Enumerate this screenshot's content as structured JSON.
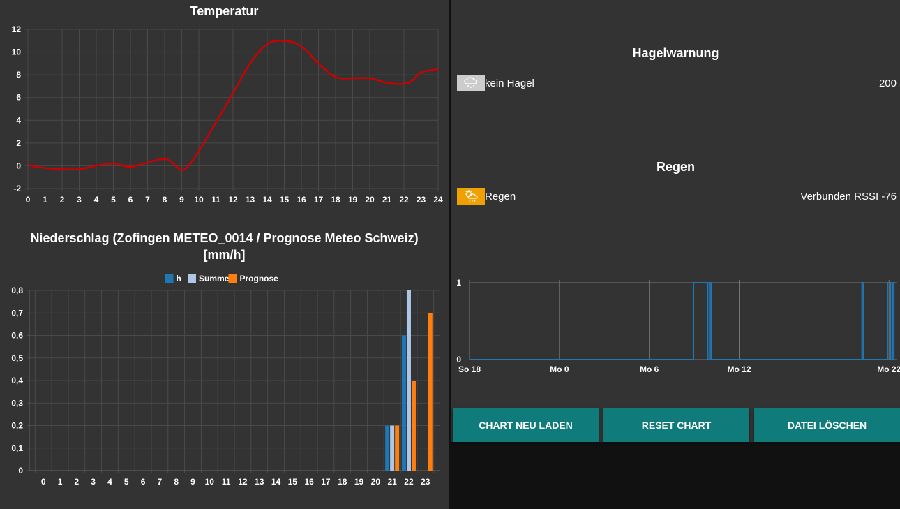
{
  "temperature_chart": {
    "title": "Temperatur",
    "line_color": "#cc0000",
    "chart_data": {
      "type": "line",
      "title": "Temperatur",
      "x": [
        0,
        0.5,
        1,
        2,
        3,
        4,
        5,
        6,
        7,
        8,
        8.5,
        9,
        9.5,
        10,
        11,
        12,
        13,
        14,
        15,
        16,
        17,
        18,
        19,
        20,
        21,
        22,
        22.5,
        23,
        24
      ],
      "y": [
        0.1,
        -0.1,
        -0.2,
        -0.3,
        -0.3,
        0,
        0.2,
        -0.1,
        0.3,
        0.6,
        0.2,
        -0.4,
        0.2,
        1.3,
        3.8,
        6.4,
        9,
        10.7,
        11,
        10.5,
        9,
        7.8,
        7.7,
        7.7,
        7.3,
        7.2,
        7.5,
        8.2,
        8.5
      ],
      "xticks": [
        "0",
        "1",
        "2",
        "3",
        "4",
        "5",
        "6",
        "7",
        "8",
        "9",
        "10",
        "11",
        "12",
        "13",
        "14",
        "15",
        "16",
        "17",
        "18",
        "19",
        "20",
        "21",
        "22",
        "23",
        "24"
      ],
      "yticks": [
        "-2",
        "0",
        "2",
        "4",
        "6",
        "8",
        "10",
        "12"
      ],
      "xlim": [
        0,
        24
      ],
      "ylim": [
        -2,
        12
      ],
      "grid": true
    }
  },
  "precip_chart": {
    "title": "Niederschlag (Zofingen METEO_0014 / Prognose Meteo Schweiz) [mm/h]",
    "title_line1": "Niederschlag (Zofingen METEO_0014 / Prognose Meteo Schweiz)",
    "title_line2": "[mm/h]",
    "legend": [
      {
        "label": "h",
        "color": "#1f77b4"
      },
      {
        "label": "Summe",
        "color": "#aec7e8"
      },
      {
        "label": "Prognose",
        "color": "#ff7f0e"
      }
    ],
    "chart_data": {
      "type": "bar",
      "categories": [
        "0",
        "1",
        "2",
        "3",
        "4",
        "5",
        "6",
        "7",
        "8",
        "9",
        "10",
        "11",
        "12",
        "13",
        "14",
        "15",
        "16",
        "17",
        "18",
        "19",
        "20",
        "21",
        "22",
        "23"
      ],
      "series": [
        {
          "name": "h",
          "color": "#1f77b4",
          "values": [
            0,
            0,
            0,
            0,
            0,
            0,
            0,
            0,
            0,
            0,
            0,
            0,
            0,
            0,
            0,
            0,
            0,
            0,
            0,
            0,
            0,
            0.2,
            0.6,
            0
          ]
        },
        {
          "name": "Summe",
          "color": "#aec7e8",
          "values": [
            0,
            0,
            0,
            0,
            0,
            0,
            0,
            0,
            0,
            0,
            0,
            0,
            0,
            0,
            0,
            0,
            0,
            0,
            0,
            0,
            0,
            0.2,
            0.8,
            0
          ]
        },
        {
          "name": "Prognose",
          "color": "#ff7f0e",
          "values": [
            0,
            0,
            0,
            0,
            0,
            0,
            0,
            0,
            0,
            0,
            0,
            0,
            0,
            0,
            0,
            0,
            0,
            0,
            0,
            0,
            0,
            0.2,
            0.4,
            0.7
          ]
        }
      ],
      "yticks": [
        "0",
        "0,1",
        "0,2",
        "0,3",
        "0,4",
        "0,5",
        "0,6",
        "0,7",
        "0,8"
      ],
      "ylim": [
        0,
        0.8
      ],
      "legend": "top",
      "grid": true
    }
  },
  "hail": {
    "title": "Hagelwarnung",
    "icon": "hail-cloud-icon",
    "icon_bg": "#cccccc",
    "label": "kein Hagel",
    "value": "200"
  },
  "rain": {
    "title": "Regen",
    "icon": "sun-rain-icon",
    "icon_bg": "#f0a000",
    "label": "Regen",
    "value": "Verbunden RSSI -76"
  },
  "rain_chart": {
    "line_color": "#1f77b4",
    "chart_data": {
      "type": "line",
      "step": true,
      "x_domain": [
        0,
        28.5
      ],
      "xticks": [
        {
          "at": 0,
          "label": "So 18"
        },
        {
          "at": 6,
          "label": "Mo 0"
        },
        {
          "at": 12,
          "label": "Mo 6"
        },
        {
          "at": 18,
          "label": "Mo 12"
        },
        {
          "at": 28,
          "label": "Mo 22"
        }
      ],
      "yticks": [
        "0",
        "1"
      ],
      "ylim": [
        0,
        1
      ],
      "segments": [
        [
          14.95,
          15.9
        ],
        [
          16.03,
          16.13
        ],
        [
          26.2,
          26.3
        ],
        [
          27.9,
          28.1
        ],
        [
          28.22,
          28.32
        ]
      ]
    }
  },
  "buttons": {
    "reload": "CHART NEU LADEN",
    "reset": "RESET CHART",
    "delete": "DATEI LÖSCHEN",
    "color": "#0f7b7b"
  }
}
